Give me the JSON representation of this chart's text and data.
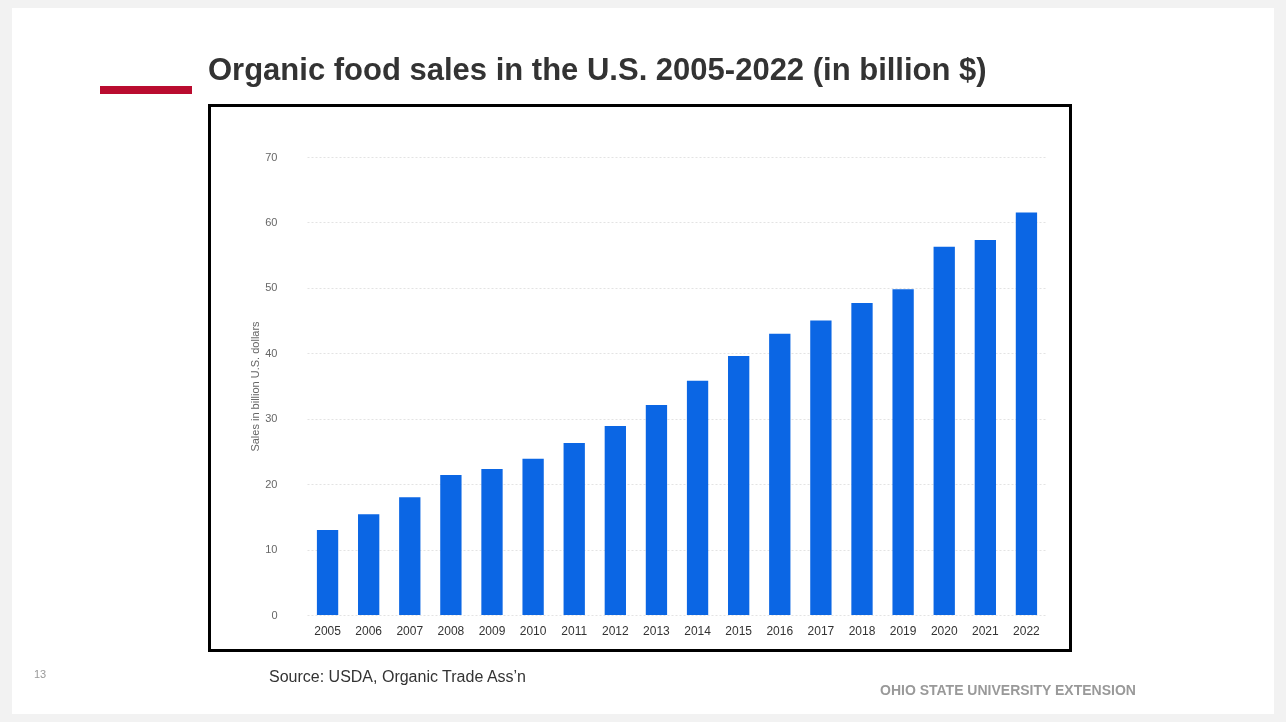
{
  "chart_data": {
    "type": "bar",
    "title": "Organic food sales in the U.S. 2005-2022 (in billion $)",
    "ylabel": "Sales in billion U.S. dollars",
    "categories": [
      "2005",
      "2006",
      "2007",
      "2008",
      "2009",
      "2010",
      "2011",
      "2012",
      "2013",
      "2014",
      "2015",
      "2016",
      "2017",
      "2018",
      "2019",
      "2020",
      "2021",
      "2022"
    ],
    "values": [
      13.0,
      15.4,
      18.0,
      21.4,
      22.3,
      23.9,
      26.3,
      28.9,
      32.1,
      35.8,
      39.6,
      43.0,
      45.0,
      47.7,
      49.8,
      56.3,
      57.3,
      61.5
    ],
    "color": "#0b66e4",
    "ylim": [
      0,
      70
    ],
    "yticks": [
      0,
      10,
      20,
      30,
      40,
      50,
      60,
      70
    ],
    "grid": "y",
    "annotations": [
      "Source: USDA, Organic Trade Ass’n",
      "OHIO STATE UNIVERSITY EXTENSION",
      "13"
    ]
  }
}
